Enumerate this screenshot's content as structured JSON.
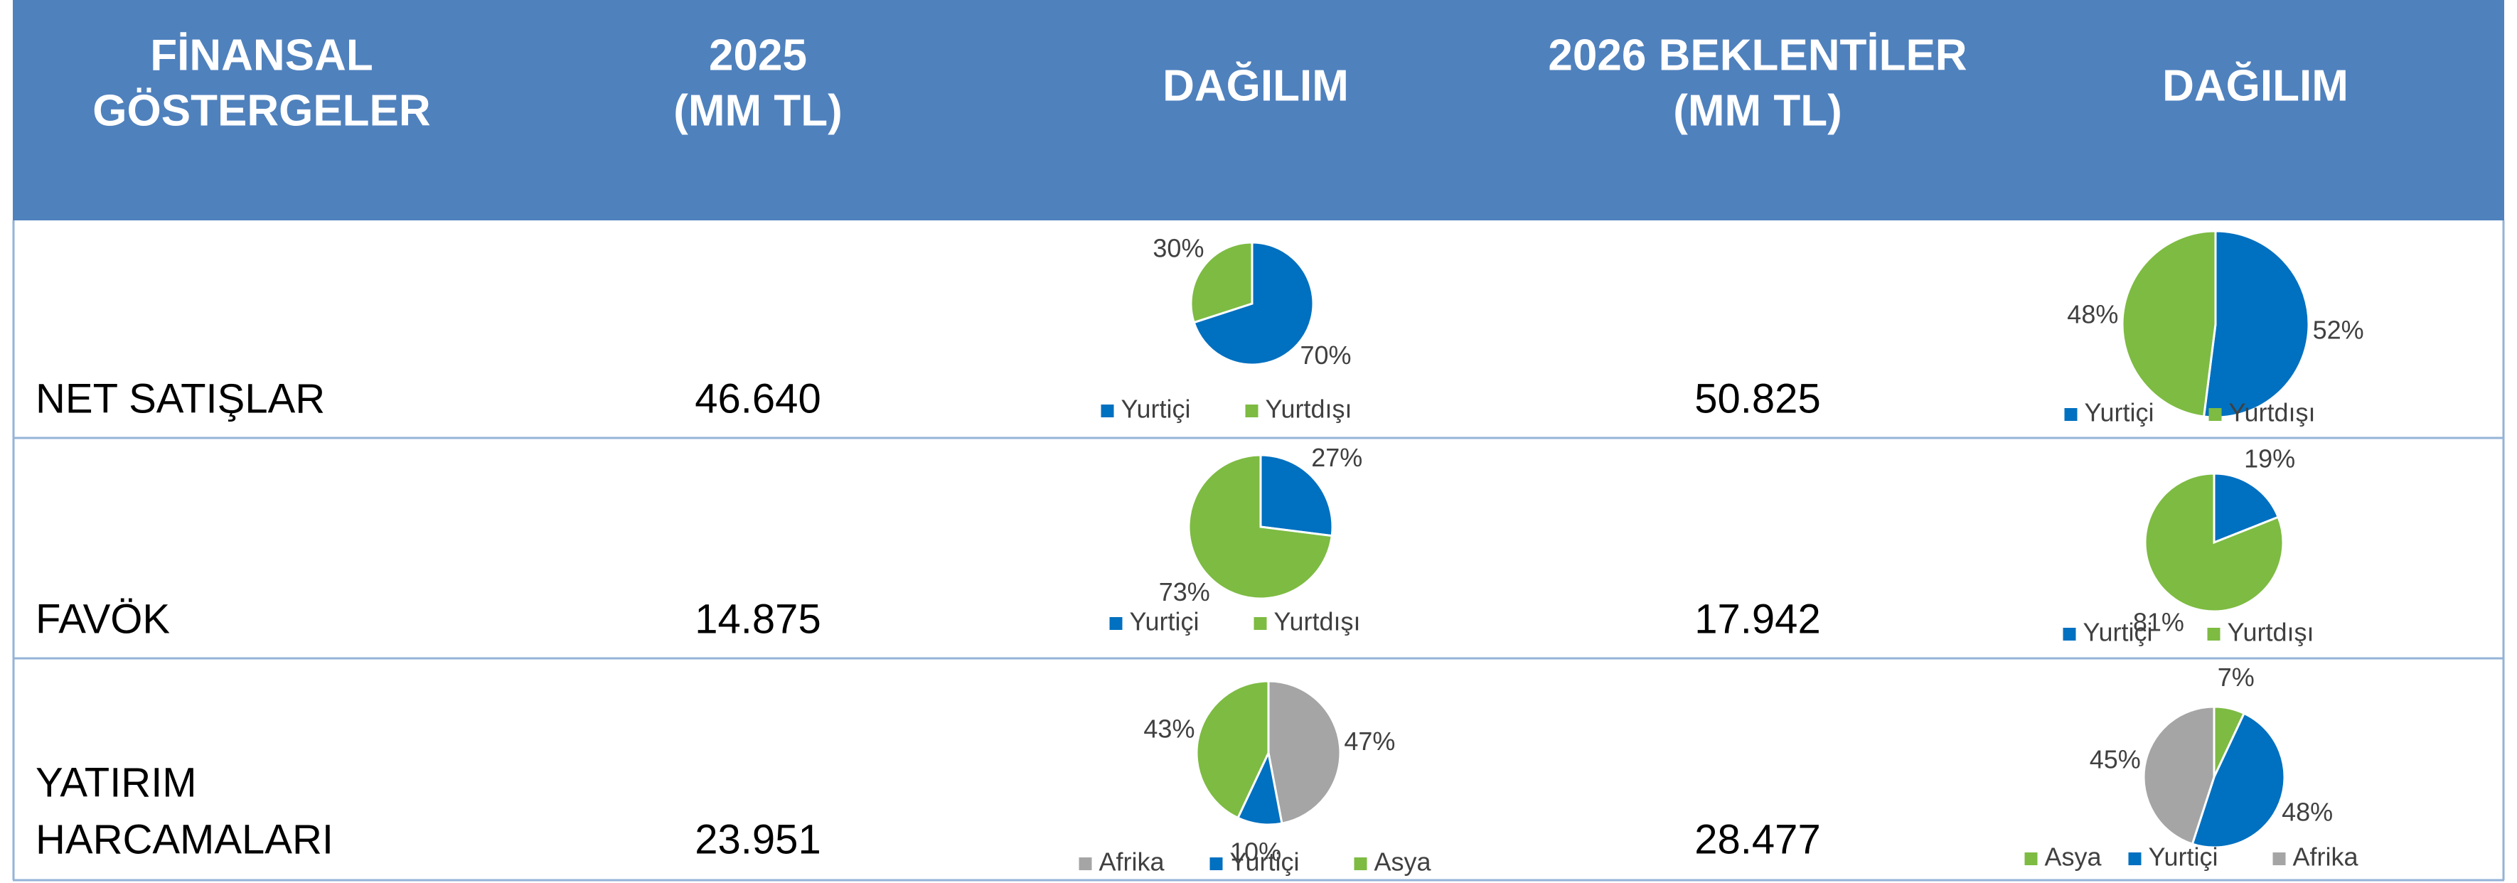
{
  "table": {
    "header": [
      [
        "FİNANSAL",
        "GÖSTERGELER"
      ],
      [
        "2025",
        "(MM TL)"
      ],
      [
        "DAĞILIM"
      ],
      [
        "2026 BEKLENTİLER",
        "(MM TL)"
      ],
      [
        "DAĞILIM"
      ]
    ],
    "rows": [
      {
        "label": [
          "NET SATIŞLAR"
        ],
        "v2025": "46.640",
        "v2026": "50.825"
      },
      {
        "label": [
          "FAVÖK"
        ],
        "v2025": "14.875",
        "v2026": "17.942"
      },
      {
        "label": [
          "YATIRIM",
          "HARCAMALARI"
        ],
        "v2025": "23.951",
        "v2026": "28.477"
      }
    ]
  },
  "chart_data": [
    {
      "type": "pie",
      "categories": [
        "Yurtiçi",
        "Yurtdışı"
      ],
      "values": [
        70,
        30
      ],
      "value_labels": [
        "70%",
        "30%"
      ],
      "colors": [
        "#0070c0",
        "#7dbb42"
      ]
    },
    {
      "type": "pie",
      "categories": [
        "Yurtiçi",
        "Yurtdışı"
      ],
      "values": [
        52,
        48
      ],
      "value_labels": [
        "52%",
        "48%"
      ],
      "colors": [
        "#0070c0",
        "#7dbb42"
      ]
    },
    {
      "type": "pie",
      "categories": [
        "Yurtiçi",
        "Yurtdışı"
      ],
      "values": [
        27,
        73
      ],
      "value_labels": [
        "27%",
        "73%"
      ],
      "colors": [
        "#0070c0",
        "#7dbb42"
      ]
    },
    {
      "type": "pie",
      "categories": [
        "Yurtiçi",
        "Yurtdışı"
      ],
      "values": [
        19,
        81
      ],
      "value_labels": [
        "19%",
        "81%"
      ],
      "colors": [
        "#0070c0",
        "#7dbb42"
      ]
    },
    {
      "type": "pie",
      "categories": [
        "Afrika",
        "Yurtiçi",
        "Asya"
      ],
      "values": [
        47,
        10,
        43
      ],
      "value_labels": [
        "47%",
        "10%",
        "43%"
      ],
      "colors": [
        "#a5a5a5",
        "#0070c0",
        "#7dbb42"
      ]
    },
    {
      "type": "pie",
      "categories": [
        "Asya",
        "Yurtiçi",
        "Afrika"
      ],
      "values": [
        7,
        48,
        45
      ],
      "value_labels": [
        "7%",
        "48%",
        "45%"
      ],
      "colors": [
        "#7dbb42",
        "#0070c0",
        "#a5a5a5"
      ]
    }
  ]
}
